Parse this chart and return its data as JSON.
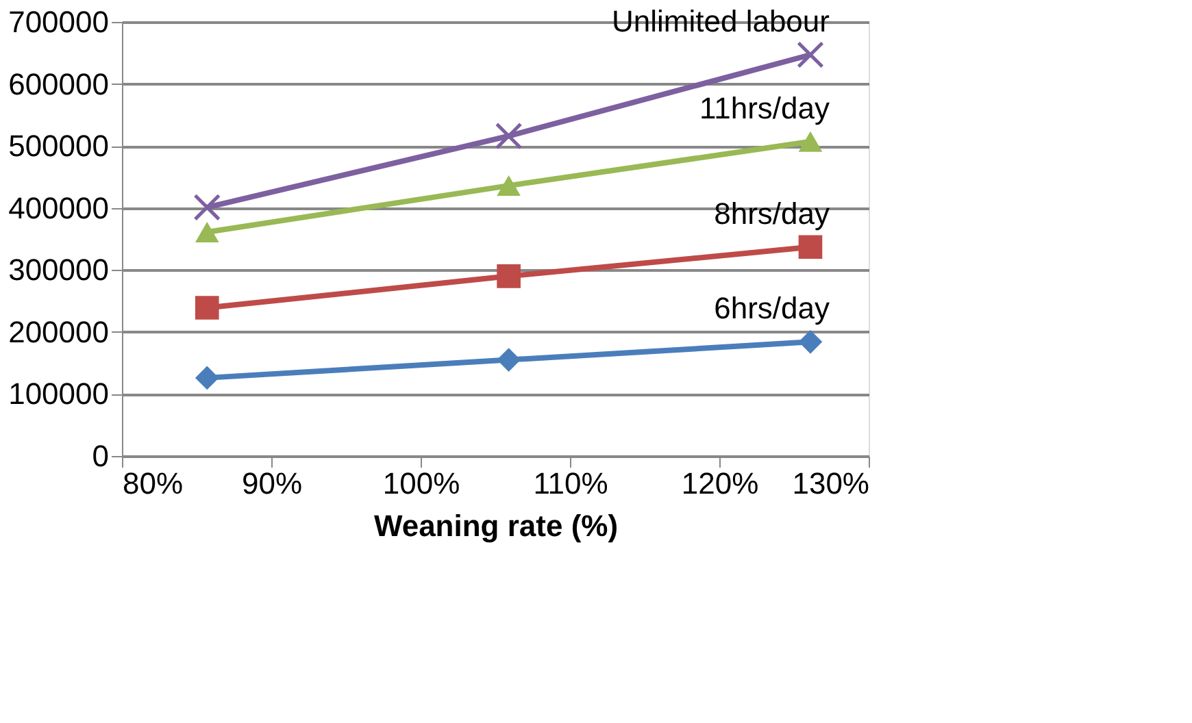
{
  "chart_data": {
    "type": "line",
    "xlabel": "Weaning rate (%)",
    "x": [
      85.7,
      105.9,
      126.1
    ],
    "xlim": [
      80,
      130
    ],
    "xticks": [
      {
        "value": 80,
        "label": "80%"
      },
      {
        "value": 90,
        "label": "90%"
      },
      {
        "value": 100,
        "label": "100%"
      },
      {
        "value": 110,
        "label": "110%"
      },
      {
        "value": 120,
        "label": "120%"
      },
      {
        "value": 130,
        "label": "130%"
      }
    ],
    "ylim": [
      0,
      700000
    ],
    "yticks": [
      0,
      100000,
      200000,
      300000,
      400000,
      500000,
      600000,
      700000
    ],
    "grid": "y",
    "series": [
      {
        "name": "6hrs/day",
        "color": "#4a7ebb",
        "marker": "diamond",
        "values": [
          126000,
          155000,
          184000
        ]
      },
      {
        "name": "8hrs/day",
        "color": "#be4b48",
        "marker": "square",
        "values": [
          239000,
          290000,
          337000
        ]
      },
      {
        "name": "11hrs/day",
        "color": "#98b954",
        "marker": "triangle",
        "values": [
          361000,
          436000,
          507000
        ]
      },
      {
        "name": "Unlimited labour",
        "color": "#7d60a0",
        "marker": "cross",
        "values": [
          401000,
          516000,
          647000
        ]
      }
    ]
  }
}
